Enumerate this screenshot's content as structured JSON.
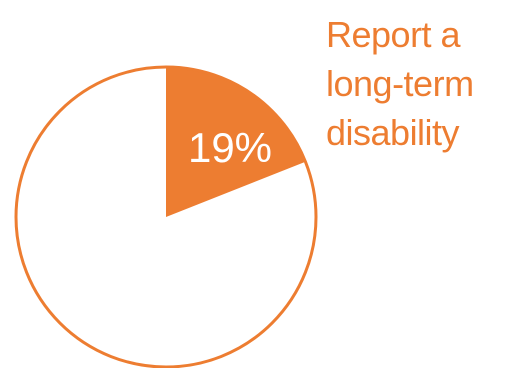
{
  "chart_data": {
    "type": "pie",
    "slices": [
      {
        "label": "19%",
        "value": 19,
        "color": "#ED7D31"
      },
      {
        "label": "",
        "value": 81,
        "color": "#FFFFFF"
      }
    ],
    "outline_color": "#ED7D31",
    "label_color": "#FFFFFF",
    "caption_lines": [
      "Report a",
      "long-term",
      "disability"
    ]
  }
}
